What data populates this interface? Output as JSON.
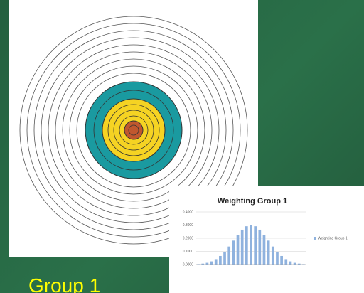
{
  "caption": "Group 1",
  "chart_data": {
    "type": "bar",
    "title": "Weighting Group 1",
    "categories": [
      null,
      null,
      null,
      null,
      null,
      null,
      null,
      null,
      null,
      null,
      null,
      null,
      null,
      null,
      null,
      null,
      null,
      null,
      null,
      null,
      null,
      null,
      null,
      null,
      null
    ],
    "series": [
      {
        "name": "Weighting Group 1",
        "color": "#8fb2de",
        "values": [
          0.003,
          0.007,
          0.013,
          0.024,
          0.041,
          0.065,
          0.097,
          0.137,
          0.182,
          0.226,
          0.265,
          0.291,
          0.3,
          0.291,
          0.265,
          0.226,
          0.182,
          0.137,
          0.097,
          0.065,
          0.041,
          0.024,
          0.013,
          0.007,
          0.003
        ]
      }
    ],
    "ylim": [
      0,
      0.4
    ],
    "yticks": [
      {
        "value": 0,
        "label": "0.0000"
      },
      {
        "value": 0.1,
        "label": "0.1000"
      },
      {
        "value": 0.2,
        "label": "0.2000"
      },
      {
        "value": 0.3,
        "label": "0.3000"
      },
      {
        "value": 0.4,
        "label": "0.4000"
      }
    ],
    "grid": true,
    "legend": "right"
  }
}
